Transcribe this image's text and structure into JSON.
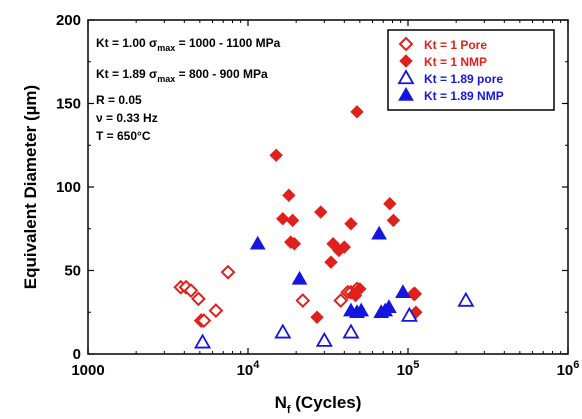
{
  "chart_data": {
    "type": "scatter",
    "title": "",
    "xlabel_main": "N",
    "xlabel_sub": "f",
    "xlabel_rest": " (Cycles)",
    "ylabel": "Equivalent Diameter (µm)",
    "xscale": "log",
    "xlim": [
      1000,
      1000000
    ],
    "ylim": [
      0,
      200
    ],
    "y_ticks": [
      "0",
      "50",
      "100",
      "150",
      "200"
    ],
    "x_ticks": [
      {
        "value": 1000,
        "base": "1000",
        "exp": ""
      },
      {
        "value": 10000,
        "base": "10",
        "exp": "4"
      },
      {
        "value": 100000,
        "base": "10",
        "exp": "5"
      },
      {
        "value": 1000000,
        "base": "10",
        "exp": "6"
      }
    ],
    "conditions": [
      {
        "lead": "Kt = 1.00 σ",
        "sub": "max",
        "tail": " = 1000 - 1100 MPa"
      },
      {
        "lead": "Kt = 1.89 σ",
        "sub": "max",
        "tail": " = 800 - 900 MPa"
      },
      {
        "lead": "R = 0.05",
        "sub": "",
        "tail": ""
      },
      {
        "lead": "ν = 0.33 Hz",
        "sub": "",
        "tail": ""
      },
      {
        "lead": "T = 650°C",
        "sub": "",
        "tail": ""
      }
    ],
    "legend_position": "top-right",
    "series": [
      {
        "name": "Kt = 1 Pore",
        "marker": "diamond-open",
        "color": "#e0201b",
        "points": [
          [
            3800,
            40
          ],
          [
            4100,
            40
          ],
          [
            4400,
            38
          ],
          [
            4900,
            33
          ],
          [
            5100,
            20
          ],
          [
            5300,
            20
          ],
          [
            6300,
            26
          ],
          [
            7500,
            49
          ],
          [
            22000,
            32
          ],
          [
            38000,
            32
          ],
          [
            42000,
            37
          ],
          [
            44000,
            37
          ],
          [
            48000,
            39
          ],
          [
            110000,
            36
          ]
        ]
      },
      {
        "name": "Kt = 1 NMP",
        "marker": "diamond-filled",
        "color": "#e0201b",
        "points": [
          [
            15000,
            119
          ],
          [
            16500,
            81
          ],
          [
            18000,
            95
          ],
          [
            18500,
            67
          ],
          [
            19000,
            80
          ],
          [
            19500,
            66
          ],
          [
            27000,
            22
          ],
          [
            28500,
            85
          ],
          [
            33000,
            55
          ],
          [
            34000,
            66
          ],
          [
            37000,
            62
          ],
          [
            40000,
            64
          ],
          [
            44000,
            78
          ],
          [
            46000,
            36
          ],
          [
            47000,
            35
          ],
          [
            48000,
            145
          ],
          [
            50000,
            39
          ],
          [
            77000,
            90
          ],
          [
            81000,
            80
          ],
          [
            108000,
            36
          ],
          [
            112000,
            25
          ]
        ]
      },
      {
        "name": "Kt = 1.89 pore",
        "marker": "triangle-open",
        "color": "#1515e0",
        "points": [
          [
            5200,
            7
          ],
          [
            16500,
            13
          ],
          [
            30000,
            8
          ],
          [
            44000,
            13
          ],
          [
            102000,
            23
          ],
          [
            230000,
            32
          ]
        ]
      },
      {
        "name": "Kt = 1.89 NMP",
        "marker": "triangle-filled",
        "color": "#1515e0",
        "points": [
          [
            11500,
            66
          ],
          [
            21000,
            45
          ],
          [
            44000,
            26
          ],
          [
            48000,
            25
          ],
          [
            51000,
            26
          ],
          [
            66000,
            72
          ],
          [
            68000,
            25
          ],
          [
            72000,
            26
          ],
          [
            76000,
            28
          ],
          [
            93000,
            37
          ]
        ]
      }
    ]
  }
}
